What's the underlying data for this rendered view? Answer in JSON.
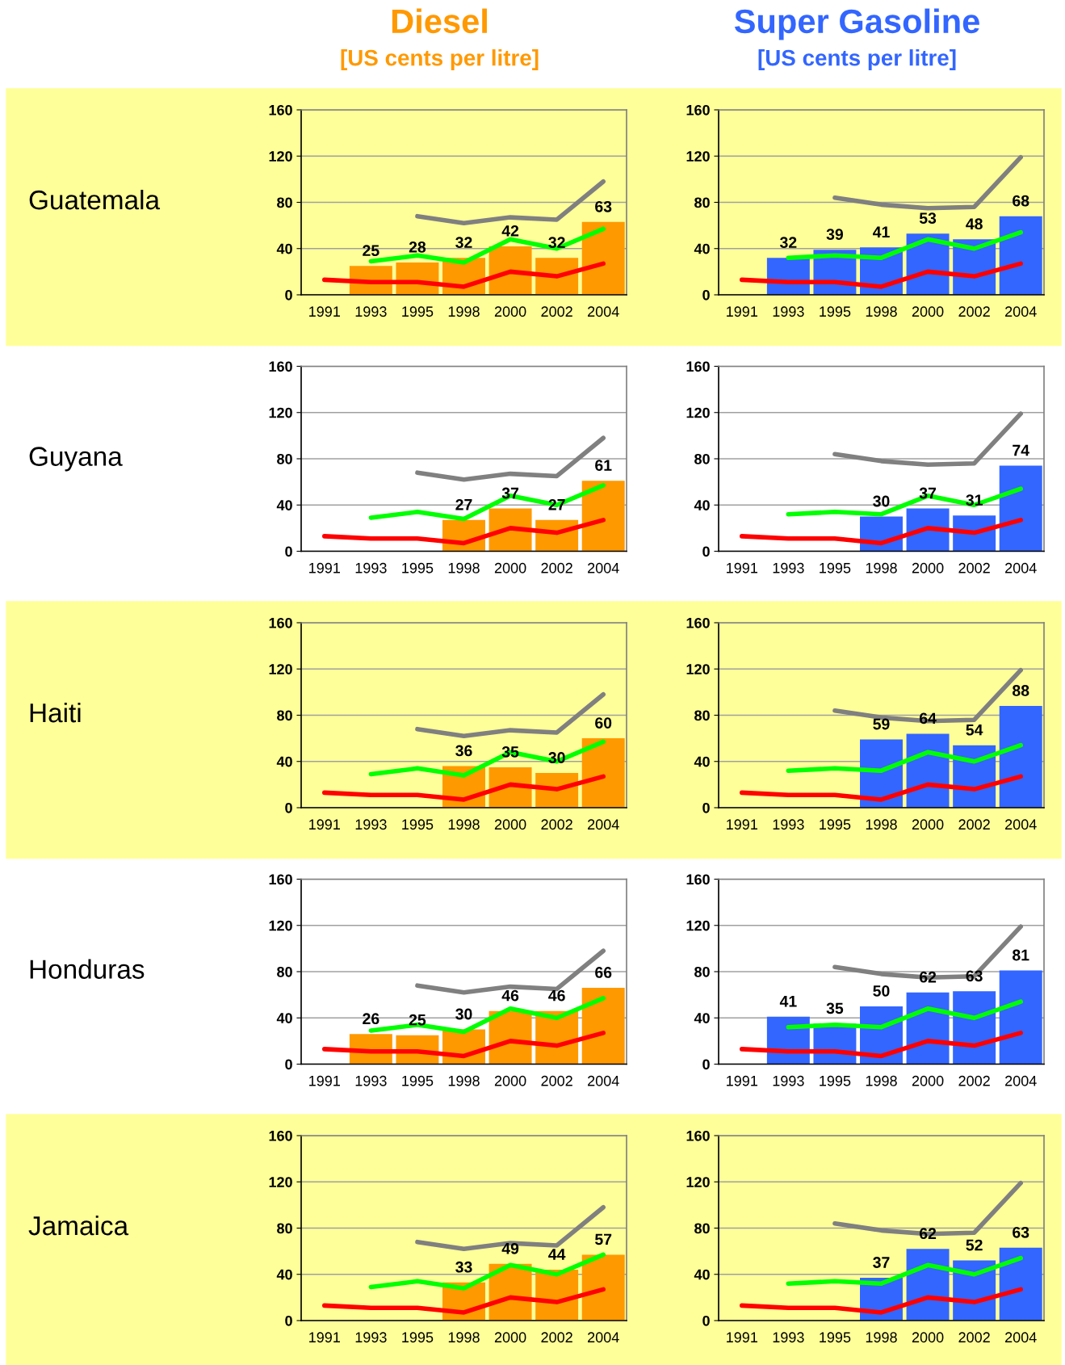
{
  "chart_data": [
    {
      "type": "bar",
      "title": "Diesel",
      "subtitle": "[US cents per litre]",
      "ylabel": "Guatemala",
      "categories": [
        "1991",
        "1993",
        "1995",
        "1998",
        "2000",
        "2002",
        "2004"
      ],
      "ylim": [
        0,
        160
      ],
      "yticks": [
        0,
        40,
        80,
        120,
        160
      ],
      "grid": "y",
      "series": [
        {
          "color": "#ff9900",
          "values": [
            null,
            25,
            28,
            32,
            42,
            32,
            63
          ],
          "value_labels": [
            null,
            "25",
            "28",
            "32",
            "42",
            "32",
            "63"
          ]
        },
        {
          "type": "line",
          "color": "#808080",
          "values": [
            null,
            null,
            68,
            62,
            67,
            65,
            98
          ]
        },
        {
          "type": "line",
          "color": "#00ff00",
          "values": [
            null,
            29,
            34,
            28,
            48,
            40,
            57
          ]
        },
        {
          "type": "line",
          "color": "#ff0000",
          "values": [
            13,
            11,
            11,
            7,
            20,
            16,
            27
          ]
        }
      ]
    },
    {
      "type": "bar",
      "title": "Super Gasoline",
      "subtitle": "[US cents per litre]",
      "categories": [
        "1991",
        "1993",
        "1995",
        "1998",
        "2000",
        "2002",
        "2004"
      ],
      "ylim": [
        0,
        160
      ],
      "yticks": [
        0,
        40,
        80,
        120,
        160
      ],
      "grid": "y",
      "series": [
        {
          "color": "#3366ff",
          "values": [
            null,
            32,
            39,
            41,
            53,
            48,
            68
          ],
          "value_labels": [
            null,
            "32",
            "39",
            "41",
            "53",
            "48",
            "68"
          ]
        },
        {
          "type": "line",
          "color": "#808080",
          "values": [
            null,
            null,
            84,
            78,
            75,
            76,
            119
          ]
        },
        {
          "type": "line",
          "color": "#00ff00",
          "values": [
            null,
            32,
            34,
            32,
            48,
            40,
            54
          ]
        },
        {
          "type": "line",
          "color": "#ff0000",
          "values": [
            13,
            11,
            11,
            7,
            20,
            16,
            27
          ]
        }
      ]
    },
    {
      "type": "bar",
      "ylabel": "Guyana",
      "categories": [
        "1991",
        "1993",
        "1995",
        "1998",
        "2000",
        "2002",
        "2004"
      ],
      "ylim": [
        0,
        160
      ],
      "yticks": [
        0,
        40,
        80,
        120,
        160
      ],
      "grid": "y",
      "series": [
        {
          "color": "#ff9900",
          "values": [
            null,
            null,
            null,
            27,
            37,
            27,
            61
          ],
          "value_labels": [
            null,
            null,
            null,
            "27",
            "37",
            "27",
            "61"
          ]
        },
        {
          "type": "line",
          "color": "#808080",
          "values": [
            null,
            null,
            68,
            62,
            67,
            65,
            98
          ]
        },
        {
          "type": "line",
          "color": "#00ff00",
          "values": [
            null,
            29,
            34,
            28,
            48,
            40,
            57
          ]
        },
        {
          "type": "line",
          "color": "#ff0000",
          "values": [
            13,
            11,
            11,
            7,
            20,
            16,
            27
          ]
        }
      ]
    },
    {
      "type": "bar",
      "categories": [
        "1991",
        "1993",
        "1995",
        "1998",
        "2000",
        "2002",
        "2004"
      ],
      "ylim": [
        0,
        160
      ],
      "yticks": [
        0,
        40,
        80,
        120,
        160
      ],
      "grid": "y",
      "series": [
        {
          "color": "#3366ff",
          "values": [
            null,
            null,
            null,
            30,
            37,
            31,
            74
          ],
          "value_labels": [
            null,
            null,
            null,
            "30",
            "37",
            "31",
            "74"
          ]
        },
        {
          "type": "line",
          "color": "#808080",
          "values": [
            null,
            null,
            84,
            78,
            75,
            76,
            119
          ]
        },
        {
          "type": "line",
          "color": "#00ff00",
          "values": [
            null,
            32,
            34,
            32,
            48,
            40,
            54
          ]
        },
        {
          "type": "line",
          "color": "#ff0000",
          "values": [
            13,
            11,
            11,
            7,
            20,
            16,
            27
          ]
        }
      ]
    },
    {
      "type": "bar",
      "ylabel": "Haiti",
      "categories": [
        "1991",
        "1993",
        "1995",
        "1998",
        "2000",
        "2002",
        "2004"
      ],
      "ylim": [
        0,
        160
      ],
      "yticks": [
        0,
        40,
        80,
        120,
        160
      ],
      "grid": "y",
      "series": [
        {
          "color": "#ff9900",
          "values": [
            null,
            null,
            null,
            36,
            35,
            30,
            60
          ],
          "value_labels": [
            null,
            null,
            null,
            "36",
            "35",
            "30",
            "60"
          ]
        },
        {
          "type": "line",
          "color": "#808080",
          "values": [
            null,
            null,
            68,
            62,
            67,
            65,
            98
          ]
        },
        {
          "type": "line",
          "color": "#00ff00",
          "values": [
            null,
            29,
            34,
            28,
            48,
            40,
            57
          ]
        },
        {
          "type": "line",
          "color": "#ff0000",
          "values": [
            13,
            11,
            11,
            7,
            20,
            16,
            27
          ]
        }
      ]
    },
    {
      "type": "bar",
      "categories": [
        "1991",
        "1993",
        "1995",
        "1998",
        "2000",
        "2002",
        "2004"
      ],
      "ylim": [
        0,
        160
      ],
      "yticks": [
        0,
        40,
        80,
        120,
        160
      ],
      "grid": "y",
      "series": [
        {
          "color": "#3366ff",
          "values": [
            null,
            null,
            null,
            59,
            64,
            54,
            88
          ],
          "value_labels": [
            null,
            null,
            null,
            "59",
            "64",
            "54",
            "88"
          ]
        },
        {
          "type": "line",
          "color": "#808080",
          "values": [
            null,
            null,
            84,
            78,
            75,
            76,
            119
          ]
        },
        {
          "type": "line",
          "color": "#00ff00",
          "values": [
            null,
            32,
            34,
            32,
            48,
            40,
            54
          ]
        },
        {
          "type": "line",
          "color": "#ff0000",
          "values": [
            13,
            11,
            11,
            7,
            20,
            16,
            27
          ]
        }
      ]
    },
    {
      "type": "bar",
      "ylabel": "Honduras",
      "categories": [
        "1991",
        "1993",
        "1995",
        "1998",
        "2000",
        "2002",
        "2004"
      ],
      "ylim": [
        0,
        160
      ],
      "yticks": [
        0,
        40,
        80,
        120,
        160
      ],
      "grid": "y",
      "series": [
        {
          "color": "#ff9900",
          "values": [
            null,
            26,
            25,
            30,
            46,
            46,
            66
          ],
          "value_labels": [
            null,
            "26",
            "25",
            "30",
            "46",
            "46",
            "66"
          ]
        },
        {
          "type": "line",
          "color": "#808080",
          "values": [
            null,
            null,
            68,
            62,
            67,
            65,
            98
          ]
        },
        {
          "type": "line",
          "color": "#00ff00",
          "values": [
            null,
            29,
            34,
            28,
            48,
            40,
            57
          ]
        },
        {
          "type": "line",
          "color": "#ff0000",
          "values": [
            13,
            11,
            11,
            7,
            20,
            16,
            27
          ]
        }
      ]
    },
    {
      "type": "bar",
      "categories": [
        "1991",
        "1993",
        "1995",
        "1998",
        "2000",
        "2002",
        "2004"
      ],
      "ylim": [
        0,
        160
      ],
      "yticks": [
        0,
        40,
        80,
        120,
        160
      ],
      "grid": "y",
      "series": [
        {
          "color": "#3366ff",
          "values": [
            null,
            41,
            35,
            50,
            62,
            63,
            81
          ],
          "value_labels": [
            null,
            "41",
            "35",
            "50",
            "62",
            "63",
            "81"
          ]
        },
        {
          "type": "line",
          "color": "#808080",
          "values": [
            null,
            null,
            84,
            78,
            75,
            76,
            119
          ]
        },
        {
          "type": "line",
          "color": "#00ff00",
          "values": [
            null,
            32,
            34,
            32,
            48,
            40,
            54
          ]
        },
        {
          "type": "line",
          "color": "#ff0000",
          "values": [
            13,
            11,
            11,
            7,
            20,
            16,
            27
          ]
        }
      ]
    },
    {
      "type": "bar",
      "ylabel": "Jamaica",
      "categories": [
        "1991",
        "1993",
        "1995",
        "1998",
        "2000",
        "2002",
        "2004"
      ],
      "ylim": [
        0,
        160
      ],
      "yticks": [
        0,
        40,
        80,
        120,
        160
      ],
      "grid": "y",
      "series": [
        {
          "color": "#ff9900",
          "values": [
            null,
            null,
            null,
            33,
            49,
            44,
            57
          ],
          "value_labels": [
            null,
            null,
            null,
            "33",
            "49",
            "44",
            "57"
          ]
        },
        {
          "type": "line",
          "color": "#808080",
          "values": [
            null,
            null,
            68,
            62,
            67,
            65,
            98
          ]
        },
        {
          "type": "line",
          "color": "#00ff00",
          "values": [
            null,
            29,
            34,
            28,
            48,
            40,
            57
          ]
        },
        {
          "type": "line",
          "color": "#ff0000",
          "values": [
            13,
            11,
            11,
            7,
            20,
            16,
            27
          ]
        }
      ]
    },
    {
      "type": "bar",
      "categories": [
        "1991",
        "1993",
        "1995",
        "1998",
        "2000",
        "2002",
        "2004"
      ],
      "ylim": [
        0,
        160
      ],
      "yticks": [
        0,
        40,
        80,
        120,
        160
      ],
      "grid": "y",
      "series": [
        {
          "color": "#3366ff",
          "values": [
            null,
            null,
            null,
            37,
            62,
            52,
            63
          ],
          "value_labels": [
            null,
            null,
            null,
            "37",
            "62",
            "52",
            "63"
          ]
        },
        {
          "type": "line",
          "color": "#808080",
          "values": [
            null,
            null,
            84,
            78,
            75,
            76,
            119
          ]
        },
        {
          "type": "line",
          "color": "#00ff00",
          "values": [
            null,
            32,
            34,
            32,
            48,
            40,
            54
          ]
        },
        {
          "type": "line",
          "color": "#ff0000",
          "values": [
            13,
            11,
            11,
            7,
            20,
            16,
            27
          ]
        }
      ]
    }
  ]
}
